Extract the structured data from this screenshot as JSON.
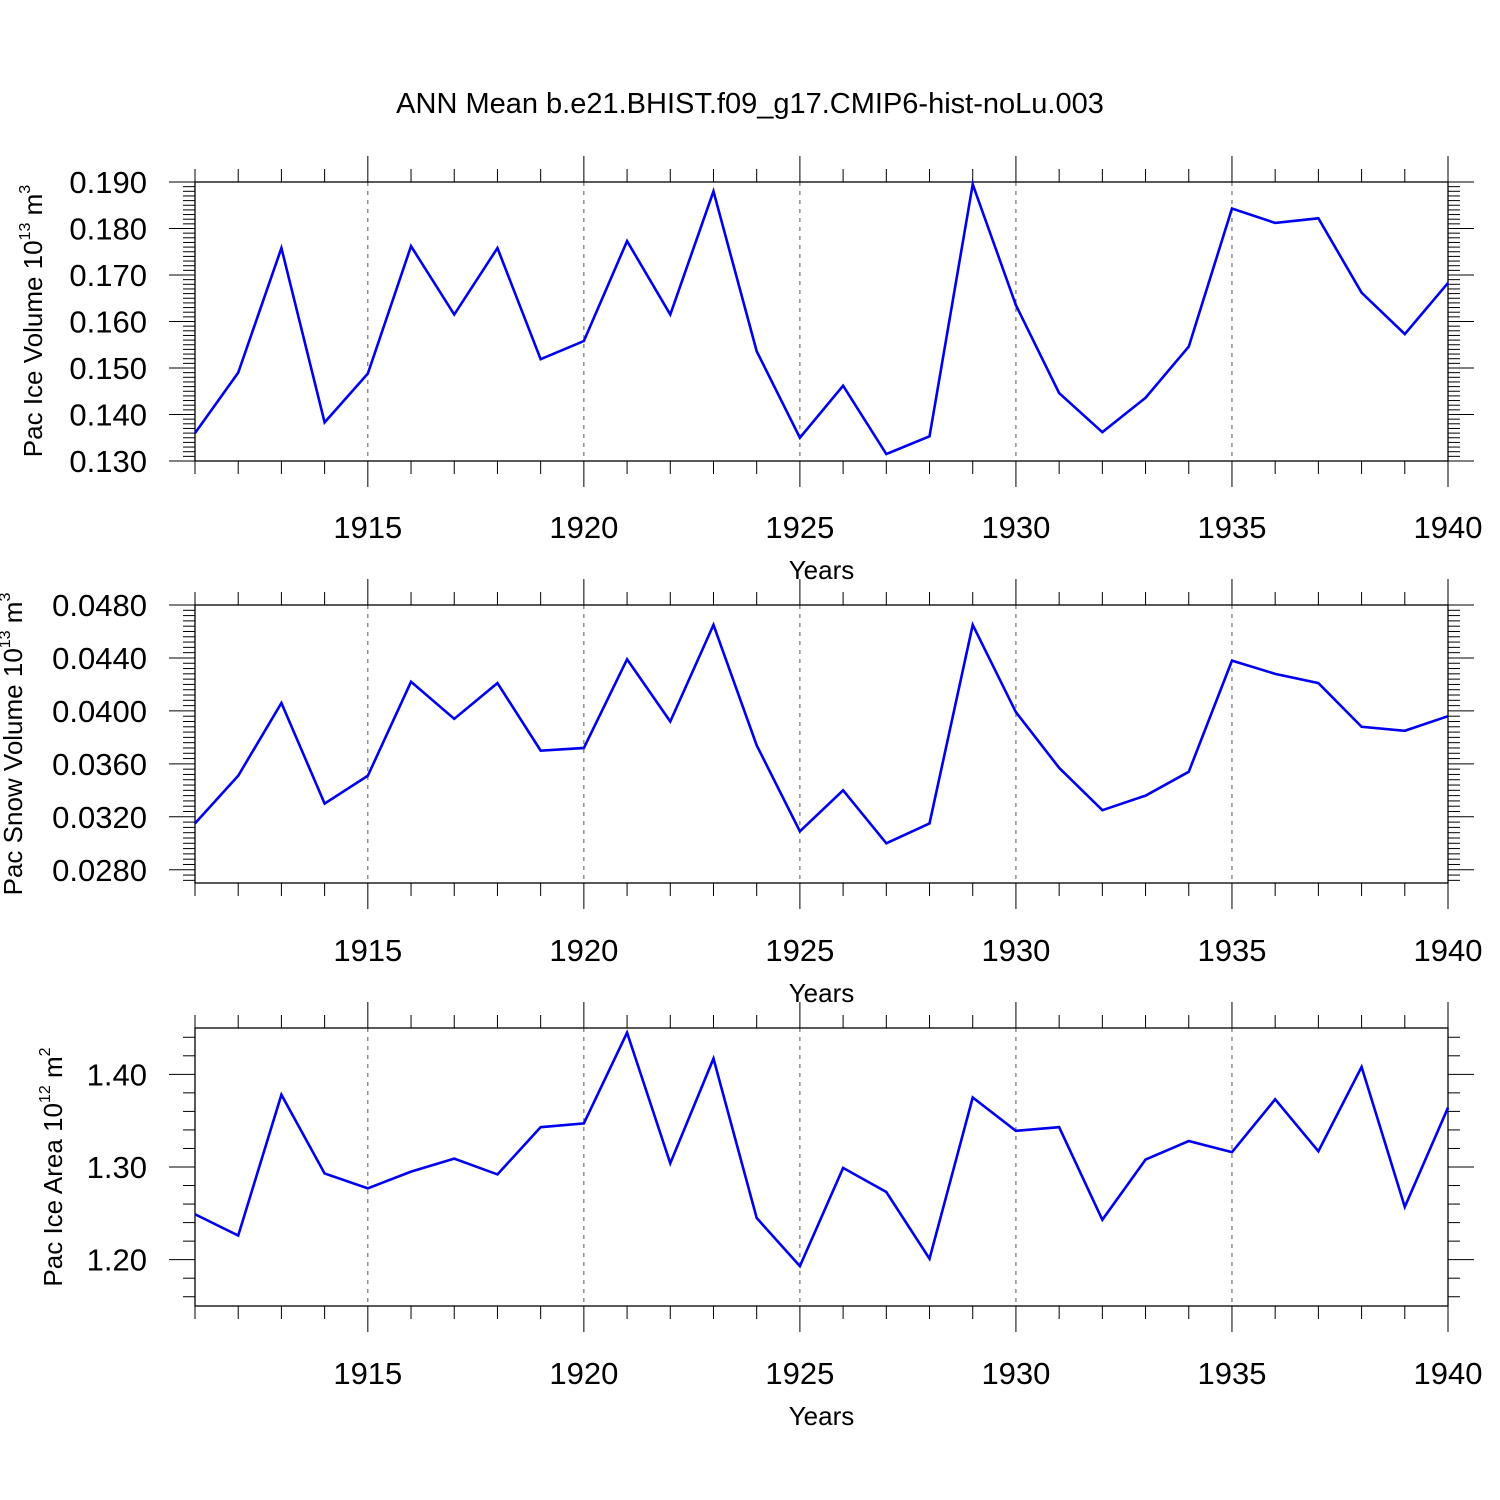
{
  "figure_title": "ANN Mean b.e21.BHIST.f09_g17.CMIP6-hist-noLu.003",
  "line_color": "#0000ee",
  "chart_data": [
    {
      "type": "line",
      "title": "ANN Mean b.e21.BHIST.f09_g17.CMIP6-hist-noLu.003",
      "ylabel_main": "Pac Ice Volume 10",
      "ylabel_exp": "13",
      "ylabel_unit": " m",
      "ylabel_unit_exp": "3",
      "xlabel": "Years",
      "xlim": [
        1911,
        1940
      ],
      "ylim": [
        0.13,
        0.19
      ],
      "yticks": [
        0.13,
        0.14,
        0.15,
        0.16,
        0.17,
        0.18,
        0.19
      ],
      "ytick_labels": [
        "0.130",
        "0.140",
        "0.150",
        "0.160",
        "0.170",
        "0.180",
        "0.190"
      ],
      "xticks": [
        1915,
        1920,
        1925,
        1930,
        1935,
        1940
      ],
      "xtick_labels": [
        "1915",
        "1920",
        "1925",
        "1930",
        "1935",
        "1940"
      ],
      "grid": "vertical dashed at major x ticks",
      "series": [
        {
          "name": "Pac Ice Volume",
          "x": [
            1911,
            1912,
            1913,
            1914,
            1915,
            1916,
            1917,
            1918,
            1919,
            1920,
            1921,
            1922,
            1923,
            1924,
            1925,
            1926,
            1927,
            1928,
            1929,
            1930,
            1931,
            1932,
            1933,
            1934,
            1935,
            1936,
            1937,
            1938,
            1939,
            1940
          ],
          "values": [
            0.136,
            0.149,
            0.1758,
            0.1383,
            0.1488,
            0.1762,
            0.1615,
            0.1758,
            0.1519,
            0.1558,
            0.1773,
            0.1615,
            0.188,
            0.1536,
            0.135,
            0.1462,
            0.1315,
            0.1353,
            0.1895,
            0.1635,
            0.1446,
            0.1362,
            0.1436,
            0.1546,
            0.1843,
            0.1812,
            0.1822,
            0.1662,
            0.1573,
            0.1683
          ]
        }
      ]
    },
    {
      "type": "line",
      "ylabel_main": "Pac Snow Volume 10",
      "ylabel_exp": "13",
      "ylabel_unit": " m",
      "ylabel_unit_exp": "3",
      "xlabel": "Years",
      "xlim": [
        1911,
        1940
      ],
      "ylim": [
        0.027,
        0.048
      ],
      "yticks": [
        0.028,
        0.032,
        0.036,
        0.04,
        0.044,
        0.048
      ],
      "ytick_labels": [
        "0.0280",
        "0.0320",
        "0.0360",
        "0.0400",
        "0.0440",
        "0.0480"
      ],
      "xticks": [
        1915,
        1920,
        1925,
        1930,
        1935,
        1940
      ],
      "xtick_labels": [
        "1915",
        "1920",
        "1925",
        "1930",
        "1935",
        "1940"
      ],
      "grid": "vertical dashed at major x ticks",
      "series": [
        {
          "name": "Pac Snow Volume",
          "x": [
            1911,
            1912,
            1913,
            1914,
            1915,
            1916,
            1917,
            1918,
            1919,
            1920,
            1921,
            1922,
            1923,
            1924,
            1925,
            1926,
            1927,
            1928,
            1929,
            1930,
            1931,
            1932,
            1933,
            1934,
            1935,
            1936,
            1937,
            1938,
            1939,
            1940
          ],
          "values": [
            0.0315,
            0.0351,
            0.0406,
            0.033,
            0.0351,
            0.0422,
            0.0394,
            0.0421,
            0.037,
            0.0372,
            0.0439,
            0.0392,
            0.0465,
            0.0374,
            0.0309,
            0.034,
            0.03,
            0.0315,
            0.0465,
            0.0399,
            0.0357,
            0.0325,
            0.0336,
            0.0354,
            0.0438,
            0.0428,
            0.0421,
            0.0388,
            0.0385,
            0.0396
          ]
        }
      ]
    },
    {
      "type": "line",
      "ylabel_main": "Pac Ice Area 10",
      "ylabel_exp": "12",
      "ylabel_unit": " m",
      "ylabel_unit_exp": "2",
      "xlabel": "Years",
      "xlim": [
        1911,
        1940
      ],
      "ylim": [
        1.15,
        1.45
      ],
      "yticks": [
        1.2,
        1.3,
        1.4
      ],
      "ytick_labels": [
        "1.20",
        "1.30",
        "1.40"
      ],
      "xticks": [
        1915,
        1920,
        1925,
        1930,
        1935,
        1940
      ],
      "xtick_labels": [
        "1915",
        "1920",
        "1925",
        "1930",
        "1935",
        "1940"
      ],
      "grid": "vertical dashed at major x ticks",
      "series": [
        {
          "name": "Pac Ice Area",
          "x": [
            1911,
            1912,
            1913,
            1914,
            1915,
            1916,
            1917,
            1918,
            1919,
            1920,
            1921,
            1922,
            1923,
            1924,
            1925,
            1926,
            1927,
            1928,
            1929,
            1930,
            1931,
            1932,
            1933,
            1934,
            1935,
            1936,
            1937,
            1938,
            1939,
            1940
          ],
          "values": [
            1.249,
            1.226,
            1.378,
            1.293,
            1.277,
            1.295,
            1.309,
            1.292,
            1.343,
            1.347,
            1.445,
            1.304,
            1.417,
            1.245,
            1.193,
            1.299,
            1.273,
            1.201,
            1.375,
            1.339,
            1.343,
            1.243,
            1.308,
            1.328,
            1.316,
            1.373,
            1.317,
            1.408,
            1.257,
            1.364
          ]
        }
      ]
    }
  ]
}
